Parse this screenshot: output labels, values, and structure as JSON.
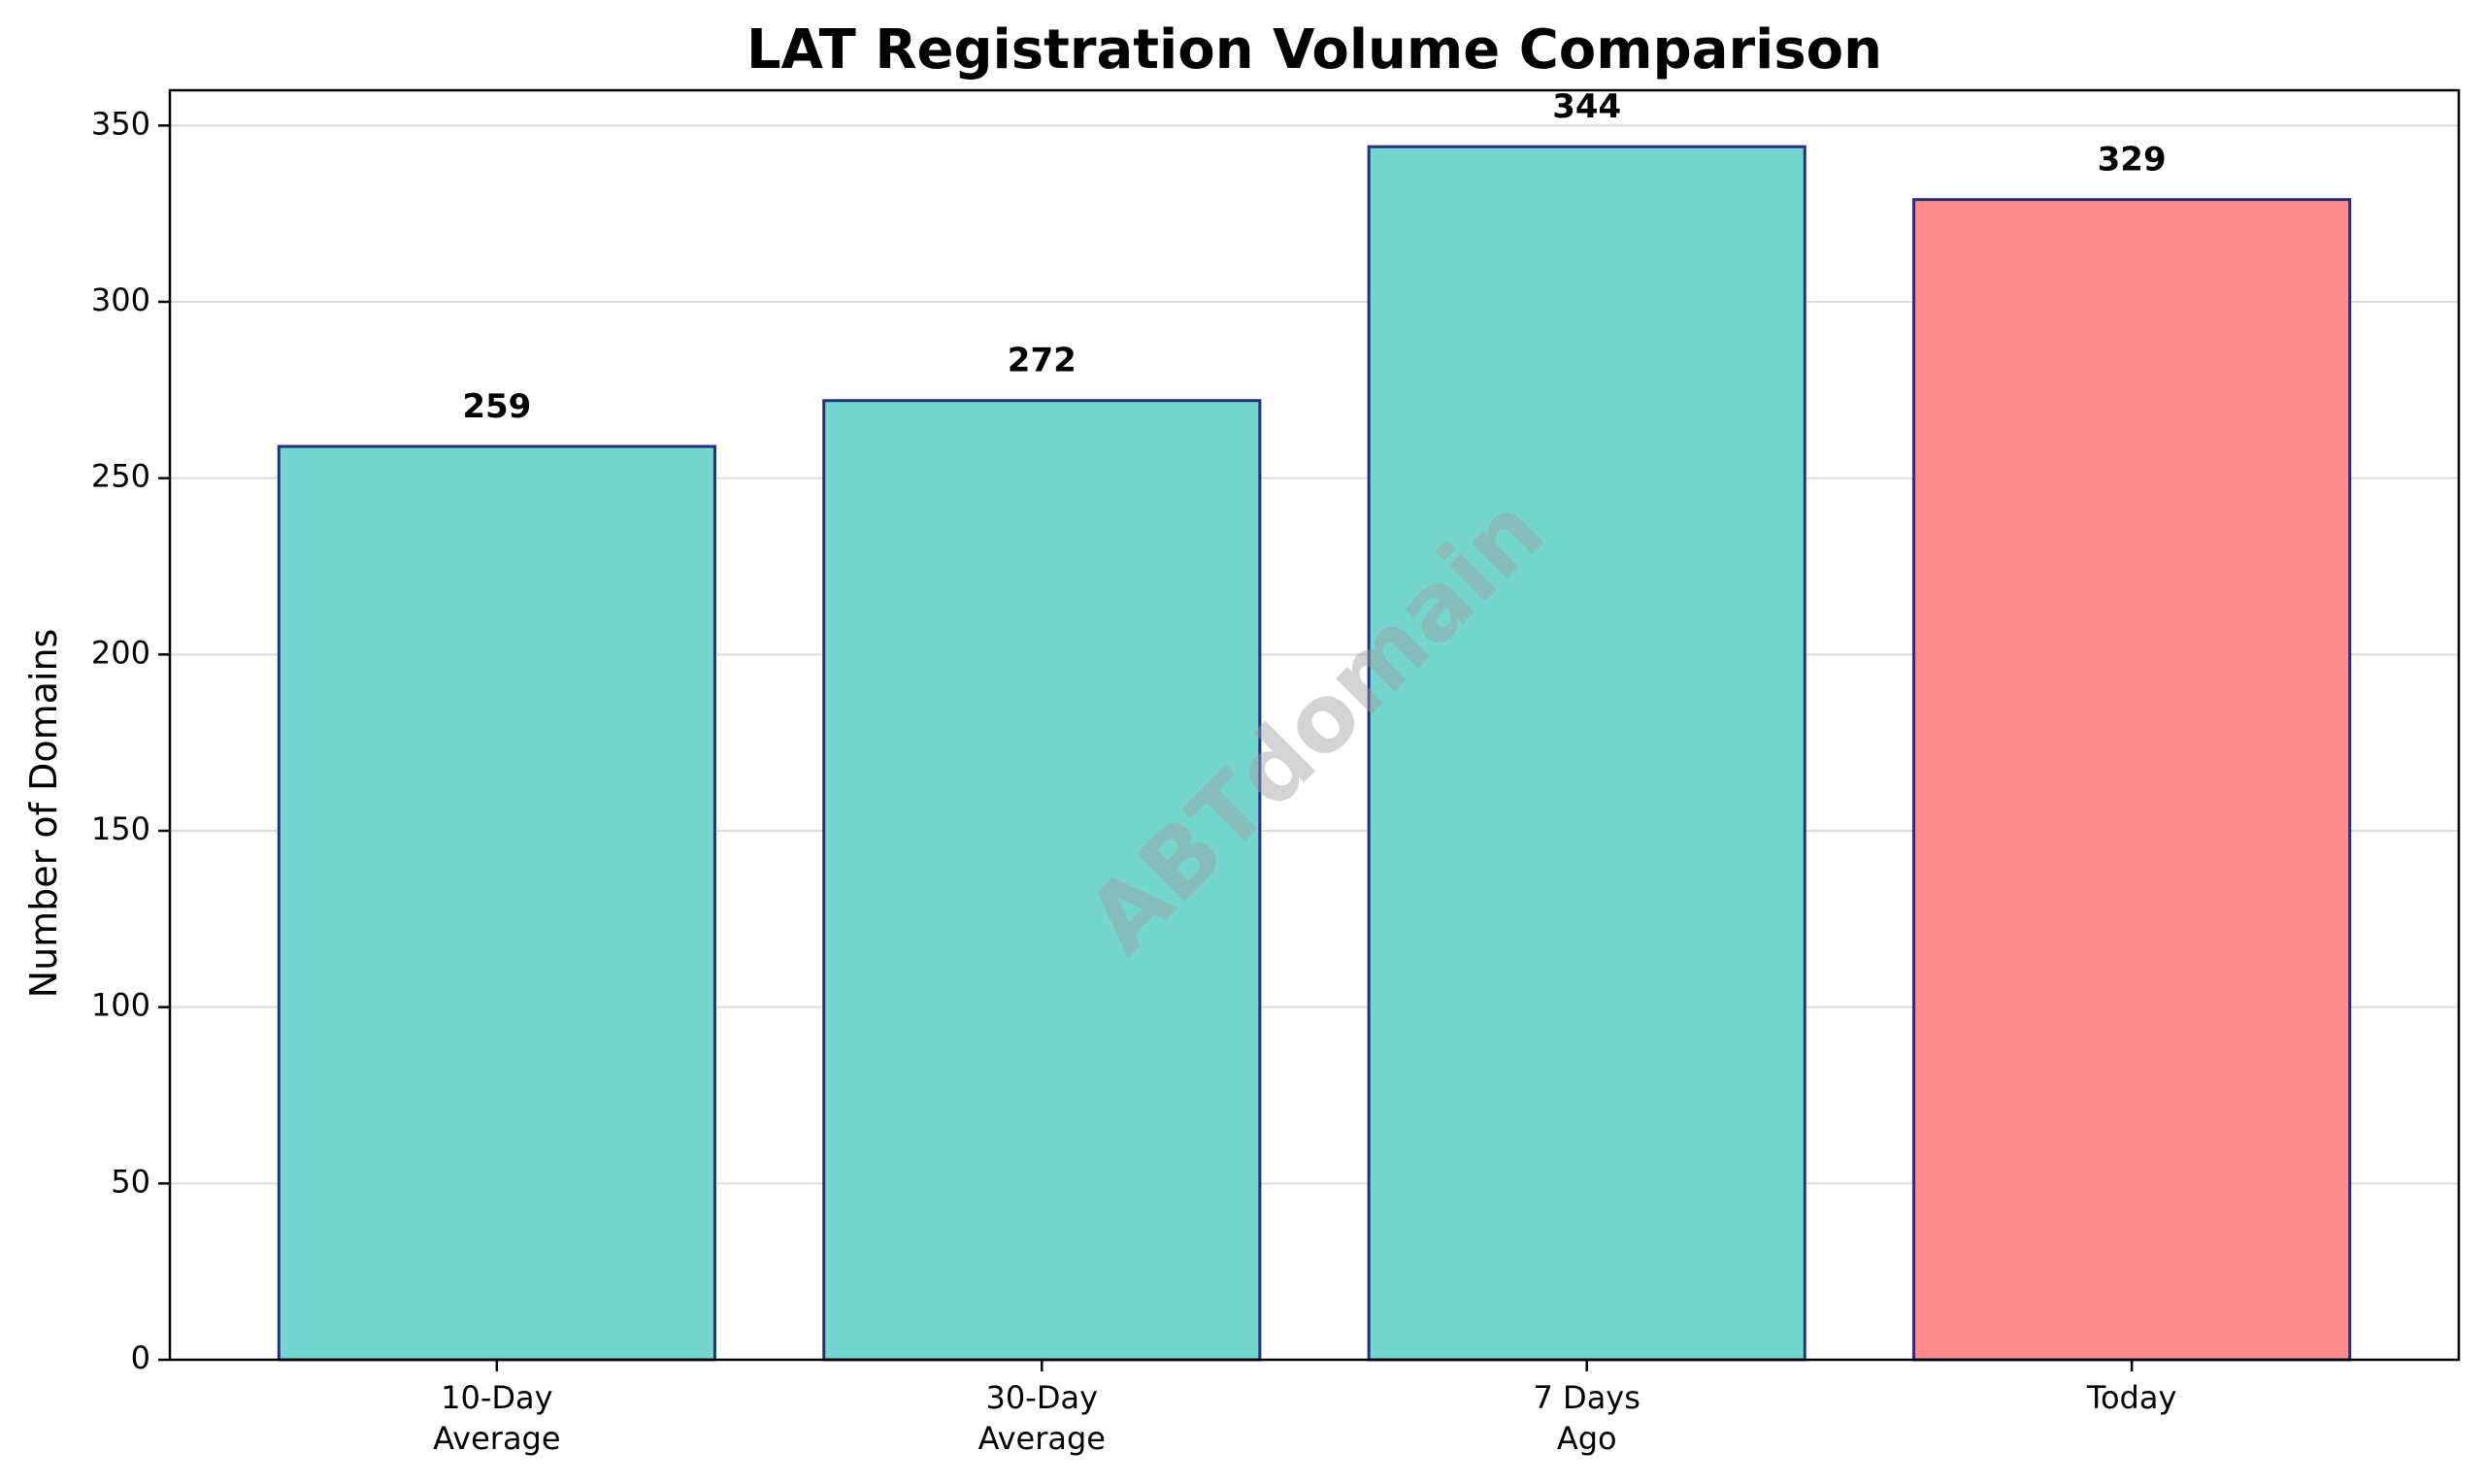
{
  "chart_data": {
    "type": "bar",
    "title": "LAT Registration Volume Comparison",
    "xlabel": "",
    "ylabel": "Number of Domains",
    "categories": [
      [
        "10-Day",
        "Average"
      ],
      [
        "30-Day",
        "Average"
      ],
      [
        "7 Days",
        "Ago"
      ],
      [
        "Today"
      ]
    ],
    "values": [
      259,
      272,
      344,
      329
    ],
    "bar_colors": [
      "#74d6cf",
      "#74d6cf",
      "#74d6cf",
      "#ff8a8a"
    ],
    "bar_edge_color": "#23307f",
    "ylim": [
      0,
      360
    ],
    "yticks": [
      0,
      50,
      100,
      150,
      200,
      250,
      300,
      350
    ],
    "grid": "y",
    "legend": "none"
  },
  "watermark": "ABTdomain"
}
